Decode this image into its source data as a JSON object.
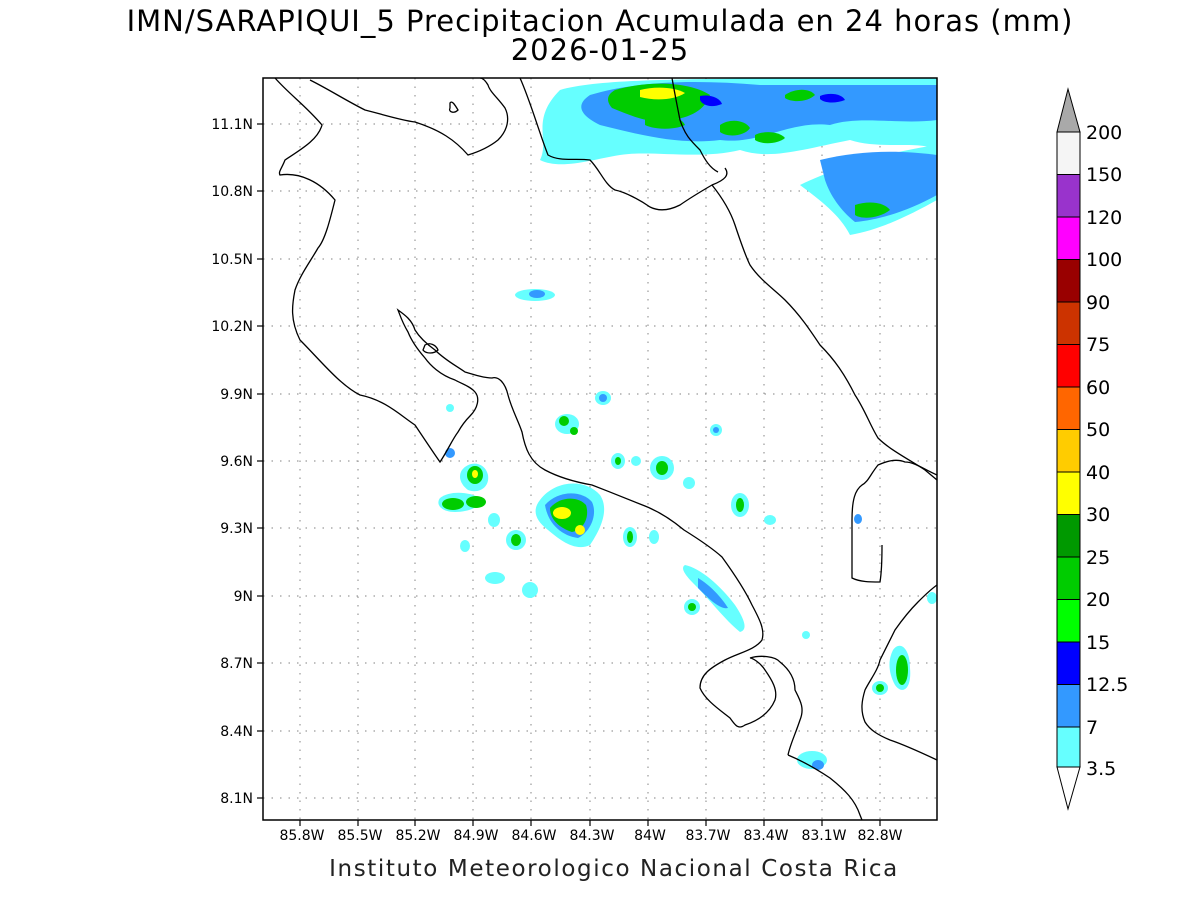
{
  "title": "IMN/SARAPIQUI_5 Precipitacion Acumulada en 24 horas (mm)",
  "date": "2026-01-25",
  "footer": "Instituto Meteorologico Nacional Costa Rica",
  "map": {
    "lon_range": [
      -86.0,
      -82.5
    ],
    "lat_range": [
      8.0,
      11.3
    ],
    "lon_ticks": [
      "85.8W",
      "85.5W",
      "85.2W",
      "84.9W",
      "84.6W",
      "84.3W",
      "84W",
      "83.7W",
      "83.4W",
      "83.1W",
      "82.8W"
    ],
    "lat_ticks": [
      "11.1N",
      "10.8N",
      "10.5N",
      "10.2N",
      "9.9N",
      "9.6N",
      "9.3N",
      "9N",
      "8.7N",
      "8.4N",
      "8.1N"
    ],
    "grid": true,
    "units": "mm"
  },
  "colorbar": {
    "levels": [
      "200",
      "150",
      "120",
      "100",
      "90",
      "75",
      "60",
      "50",
      "40",
      "30",
      "25",
      "20",
      "15",
      "12.5",
      "7",
      "3.5"
    ],
    "colors": [
      "#a9a9a9",
      "#f5f5f5",
      "#9933cc",
      "#ff00ff",
      "#990000",
      "#cc3300",
      "#ff0000",
      "#ff6600",
      "#ffcc00",
      "#ffff00",
      "#009900",
      "#00cc00",
      "#00ff00",
      "#0000ff",
      "#3399ff",
      "#66ffff",
      "#ffffff"
    ]
  }
}
